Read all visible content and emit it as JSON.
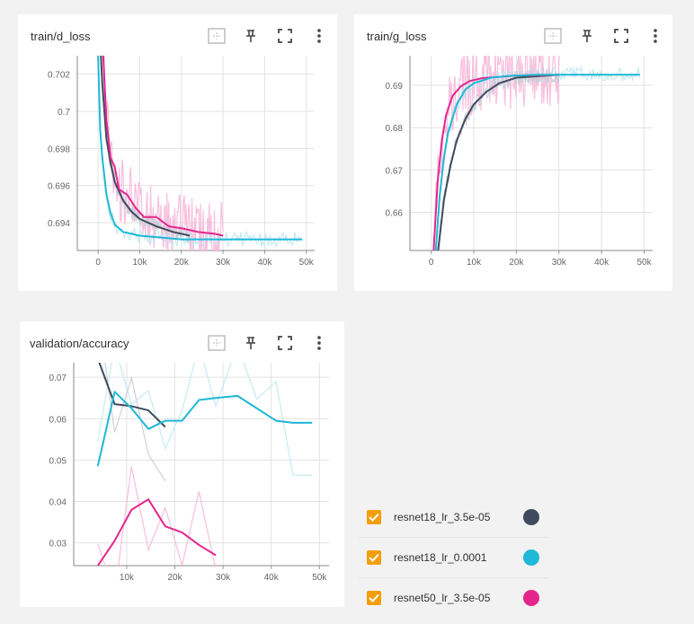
{
  "colors": {
    "dark": "#3f4a5f",
    "cyan": "#1fb8d6",
    "pink": "#e3268c",
    "pink_raw": "#f7b8da",
    "dark_raw": "#c9ccd6",
    "cyan_raw": "#bfe9f3",
    "checkbox": "#f59e0b"
  },
  "icons": {
    "fit": "fit-domain-icon",
    "pin": "pin-icon",
    "fullscreen": "fullscreen-icon",
    "menu": "more-vert-icon",
    "check": "check-icon"
  },
  "legend": {
    "items": [
      {
        "label": "resnet18_lr_3.5e-05",
        "color": "#3f4a5f"
      },
      {
        "label": "resnet18_lr_0.0001",
        "color": "#1fb8d6"
      },
      {
        "label": "resnet50_lr_3.5e-05",
        "color": "#e3268c"
      }
    ]
  },
  "chart_data": [
    {
      "id": "d_loss",
      "type": "line",
      "title": "train/d_loss",
      "xlim": [
        -5000,
        52000
      ],
      "ylim": [
        0.6925,
        0.703
      ],
      "x_ticks": [
        0,
        10000,
        20000,
        30000,
        40000,
        50000
      ],
      "x_tick_labels": [
        "0",
        "10k",
        "20k",
        "30k",
        "40k",
        "50k"
      ],
      "y_ticks": [
        0.694,
        0.696,
        0.698,
        0.7,
        0.702
      ],
      "y_tick_labels": [
        "0.694",
        "0.696",
        "0.698",
        "0.7",
        "0.702"
      ],
      "grid": true,
      "series": [
        {
          "name": "resnet18_lr_3.5e-05",
          "color": "#3f4a5f",
          "x": [
            0,
            1000,
            2000,
            3000,
            4000,
            6000,
            8000,
            10000,
            14000,
            18000,
            22000
          ],
          "y": [
            0.706,
            0.7015,
            0.6985,
            0.6972,
            0.6962,
            0.6952,
            0.6946,
            0.6942,
            0.6938,
            0.6935,
            0.6933
          ]
        },
        {
          "name": "resnet18_lr_0.0001",
          "color": "#1fb8d6",
          "x": [
            0,
            500,
            1000,
            2000,
            3000,
            4000,
            6000,
            8000,
            10000,
            15000,
            20000,
            30000,
            40000,
            49000
          ],
          "y": [
            0.703,
            0.699,
            0.6975,
            0.6955,
            0.6945,
            0.6939,
            0.6935,
            0.6934,
            0.6933,
            0.6932,
            0.6931,
            0.6931,
            0.6931,
            0.6931
          ]
        },
        {
          "name": "resnet50_lr_3.5e-05",
          "color": "#e3268c",
          "x": [
            1000,
            2000,
            3000,
            4000,
            5000,
            7000,
            9000,
            11000,
            14000,
            17000,
            20000,
            24000,
            28000,
            30000
          ],
          "y": [
            0.704,
            0.6995,
            0.6975,
            0.697,
            0.6958,
            0.6955,
            0.6948,
            0.6943,
            0.6943,
            0.6938,
            0.6937,
            0.6935,
            0.6934,
            0.6933
          ]
        }
      ]
    },
    {
      "id": "g_loss",
      "type": "line",
      "title": "train/g_loss",
      "xlim": [
        -5000,
        52000
      ],
      "ylim": [
        0.651,
        0.697
      ],
      "x_ticks": [
        0,
        10000,
        20000,
        30000,
        40000,
        50000
      ],
      "x_tick_labels": [
        "0",
        "10k",
        "20k",
        "30k",
        "40k",
        "50k"
      ],
      "y_ticks": [
        0.66,
        0.67,
        0.68,
        0.69
      ],
      "y_tick_labels": [
        "0.66",
        "0.67",
        "0.68",
        "0.69"
      ],
      "grid": true,
      "series": [
        {
          "name": "resnet18_lr_3.5e-05",
          "color": "#3f4a5f",
          "x": [
            1500,
            3000,
            4500,
            6000,
            8000,
            10000,
            13000,
            16000,
            20000,
            30000
          ],
          "y": [
            0.65,
            0.663,
            0.671,
            0.677,
            0.682,
            0.6855,
            0.6885,
            0.6905,
            0.6918,
            0.6925
          ]
        },
        {
          "name": "resnet18_lr_0.0001",
          "color": "#1fb8d6",
          "x": [
            1000,
            2000,
            3000,
            4000,
            6000,
            8000,
            10000,
            14000,
            18000,
            25000,
            35000,
            49000
          ],
          "y": [
            0.65,
            0.664,
            0.673,
            0.679,
            0.6855,
            0.689,
            0.6905,
            0.6918,
            0.6922,
            0.6925,
            0.6925,
            0.6925
          ]
        },
        {
          "name": "resnet50_lr_3.5e-05",
          "color": "#e3268c",
          "x": [
            500,
            1500,
            2500,
            3500,
            5000,
            7000,
            9000,
            12000,
            16000,
            20000,
            25000,
            30000
          ],
          "y": [
            0.65,
            0.667,
            0.677,
            0.683,
            0.6875,
            0.6898,
            0.691,
            0.6917,
            0.692,
            0.6923,
            0.6924,
            0.6925
          ]
        }
      ]
    },
    {
      "id": "val_acc",
      "type": "line",
      "title": "validation/accuracy",
      "xlim": [
        -1000,
        52000
      ],
      "ylim": [
        0.0245,
        0.0735
      ],
      "x_ticks": [
        10000,
        20000,
        30000,
        40000,
        50000
      ],
      "x_tick_labels": [
        "10k",
        "20k",
        "30k",
        "40k",
        "50k"
      ],
      "y_ticks": [
        0.03,
        0.04,
        0.05,
        0.06,
        0.07
      ],
      "y_tick_labels": [
        "0.03",
        "0.04",
        "0.05",
        "0.06",
        "0.07"
      ],
      "grid": true,
      "series": [
        {
          "name": "resnet18_lr_3.5e-05",
          "color": "#3f4a5f",
          "x": [
            4000,
            7500,
            11000,
            14500,
            18000
          ],
          "y": [
            0.0745,
            0.0635,
            0.063,
            0.062,
            0.058
          ]
        },
        {
          "name": "resnet18_lr_0.0001",
          "color": "#1fb8d6",
          "x": [
            4000,
            7500,
            11000,
            14500,
            18000,
            21500,
            25000,
            28500,
            33000,
            37000,
            41000,
            44500,
            48500
          ],
          "y": [
            0.0485,
            0.0665,
            0.0625,
            0.0575,
            0.0595,
            0.0595,
            0.0645,
            0.065,
            0.0655,
            0.0625,
            0.0595,
            0.059,
            0.059
          ]
        },
        {
          "name": "resnet50_lr_3.5e-05",
          "color": "#e3268c",
          "x": [
            4000,
            7500,
            11000,
            14500,
            18000,
            21500,
            25000,
            28500
          ],
          "y": [
            0.0245,
            0.0305,
            0.038,
            0.0405,
            0.034,
            0.0325,
            0.0295,
            0.027
          ]
        }
      ]
    }
  ]
}
